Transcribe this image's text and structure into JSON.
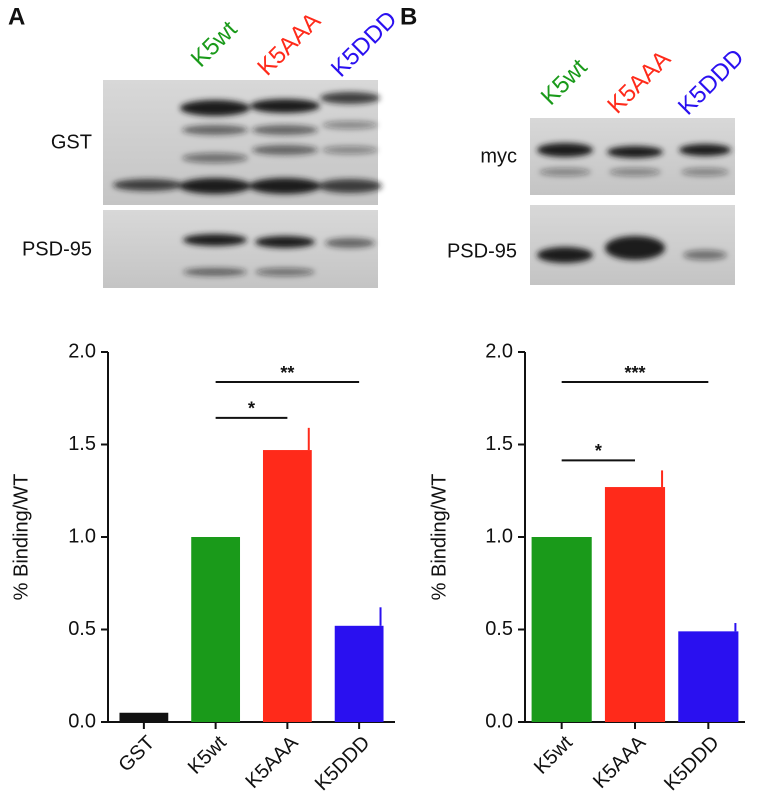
{
  "panels": [
    "A",
    "B"
  ],
  "chart_data": [
    {
      "type": "bar",
      "y_label": "% Binding/WT",
      "categories": [
        "GST",
        "K5wt",
        "K5AAA",
        "K5DDD"
      ],
      "values": [
        0.05,
        1.0,
        1.47,
        0.52
      ],
      "errors": [
        null,
        null,
        0.12,
        0.1
      ],
      "colors": [
        "#111111",
        "#1a9a1a",
        "#ff2a1a",
        "#2a10f0"
      ],
      "ylim": [
        0,
        2
      ],
      "yticks": [
        {
          "value": 0,
          "label": "0.0"
        },
        0.5,
        {
          "value": 1,
          "label": "1.0"
        },
        1.5,
        {
          "value": 2,
          "label": "2.0"
        }
      ],
      "annotations": [
        {
          "text": "*",
          "between": [
            "K5wt",
            "K5AAA"
          ]
        },
        {
          "text": "**",
          "between": [
            "K5wt",
            "K5DDD"
          ]
        }
      ],
      "lanes": [
        {
          "label": "K5wt",
          "color": "#1a9a1a"
        },
        {
          "label": "K5AAA",
          "color": "#ff2a1a"
        },
        {
          "label": "K5DDD",
          "color": "#2a10f0"
        }
      ],
      "blots": [
        "GST",
        "PSD-95"
      ]
    },
    {
      "type": "bar",
      "y_label": "% Binding/WT",
      "categories": [
        "K5wt",
        "K5AAA",
        "K5DDD"
      ],
      "values": [
        1.0,
        1.27,
        0.49
      ],
      "errors": [
        null,
        0.09,
        0.045
      ],
      "colors": [
        "#1a9a1a",
        "#ff2a1a",
        "#2a10f0"
      ],
      "ylim": [
        0,
        2
      ],
      "yticks": [
        {
          "value": 0,
          "label": "0.0"
        },
        0.5,
        {
          "value": 1,
          "label": "1.0"
        },
        1.5,
        {
          "value": 2,
          "label": "2.0"
        }
      ],
      "annotations": [
        {
          "text": "*",
          "between": [
            "K5wt",
            "K5AAA"
          ]
        },
        {
          "text": "***",
          "between": [
            "K5wt",
            "K5DDD"
          ]
        }
      ],
      "lanes": [
        {
          "label": "K5wt",
          "color": "#1a9a1a"
        },
        {
          "label": "K5AAA",
          "color": "#ff2a1a"
        },
        {
          "label": "K5DDD",
          "color": "#2a10f0"
        }
      ],
      "blots": [
        "myc",
        "PSD-95"
      ]
    }
  ]
}
